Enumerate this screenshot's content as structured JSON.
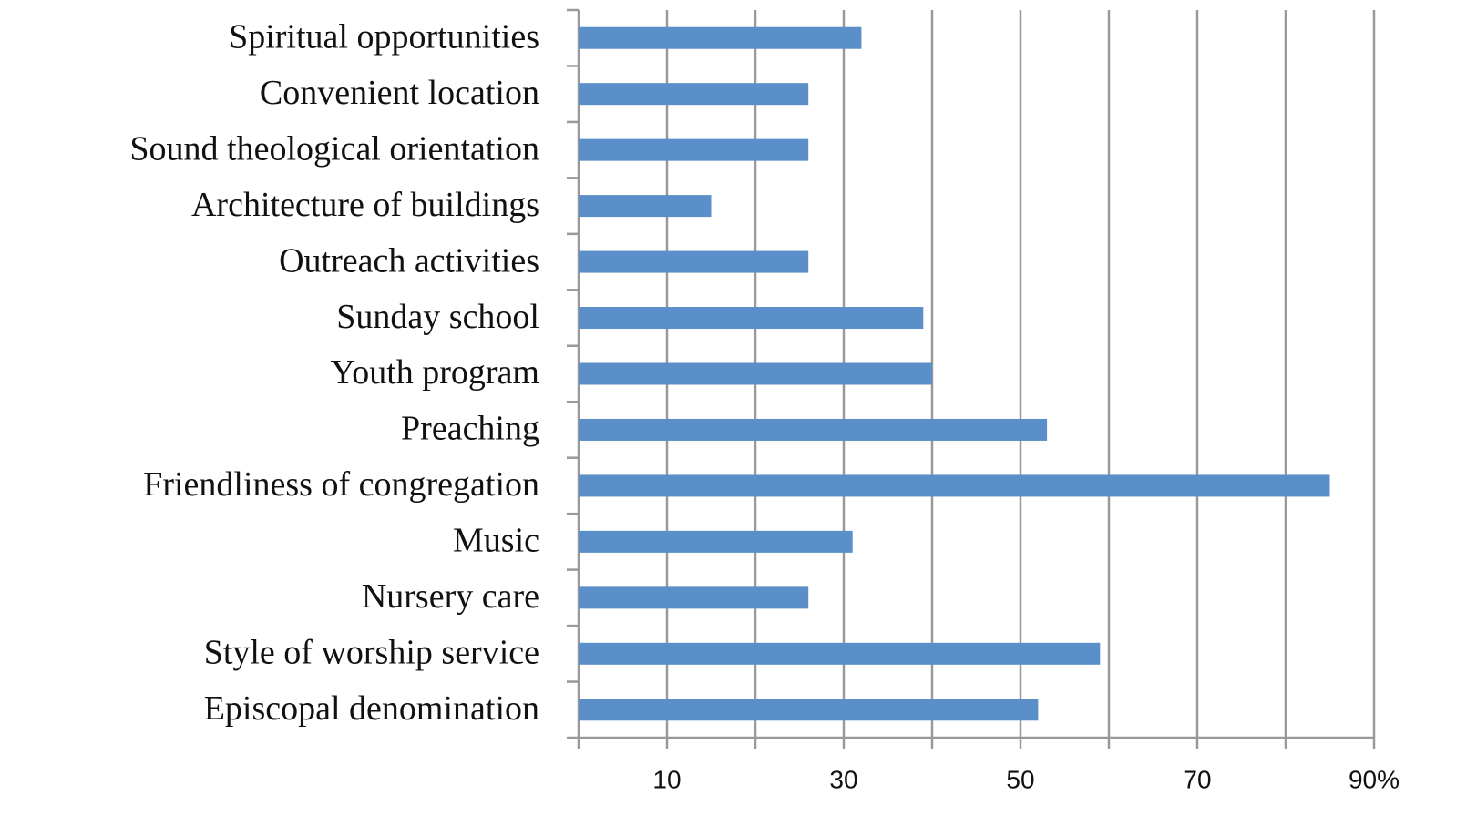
{
  "chart_data": {
    "type": "hbar",
    "categories": [
      "Spiritual opportunities",
      "Convenient location",
      "Sound theological orientation",
      "Architecture of buildings",
      "Outreach activities",
      "Sunday school",
      "Youth program",
      "Preaching",
      "Friendliness of congregation",
      "Music",
      "Nursery care",
      "Style of worship service",
      "Episcopal denomination"
    ],
    "values": [
      32,
      26,
      26,
      15,
      26,
      39,
      40,
      53,
      85,
      31,
      26,
      59,
      52
    ],
    "color": "#5b8fc9",
    "xlim": [
      0,
      90
    ],
    "xticks": [
      10,
      30,
      50,
      70,
      {
        "value": 90,
        "label": "90%"
      }
    ],
    "minor_xticks": [
      20,
      40,
      60,
      80
    ],
    "grid": true
  }
}
